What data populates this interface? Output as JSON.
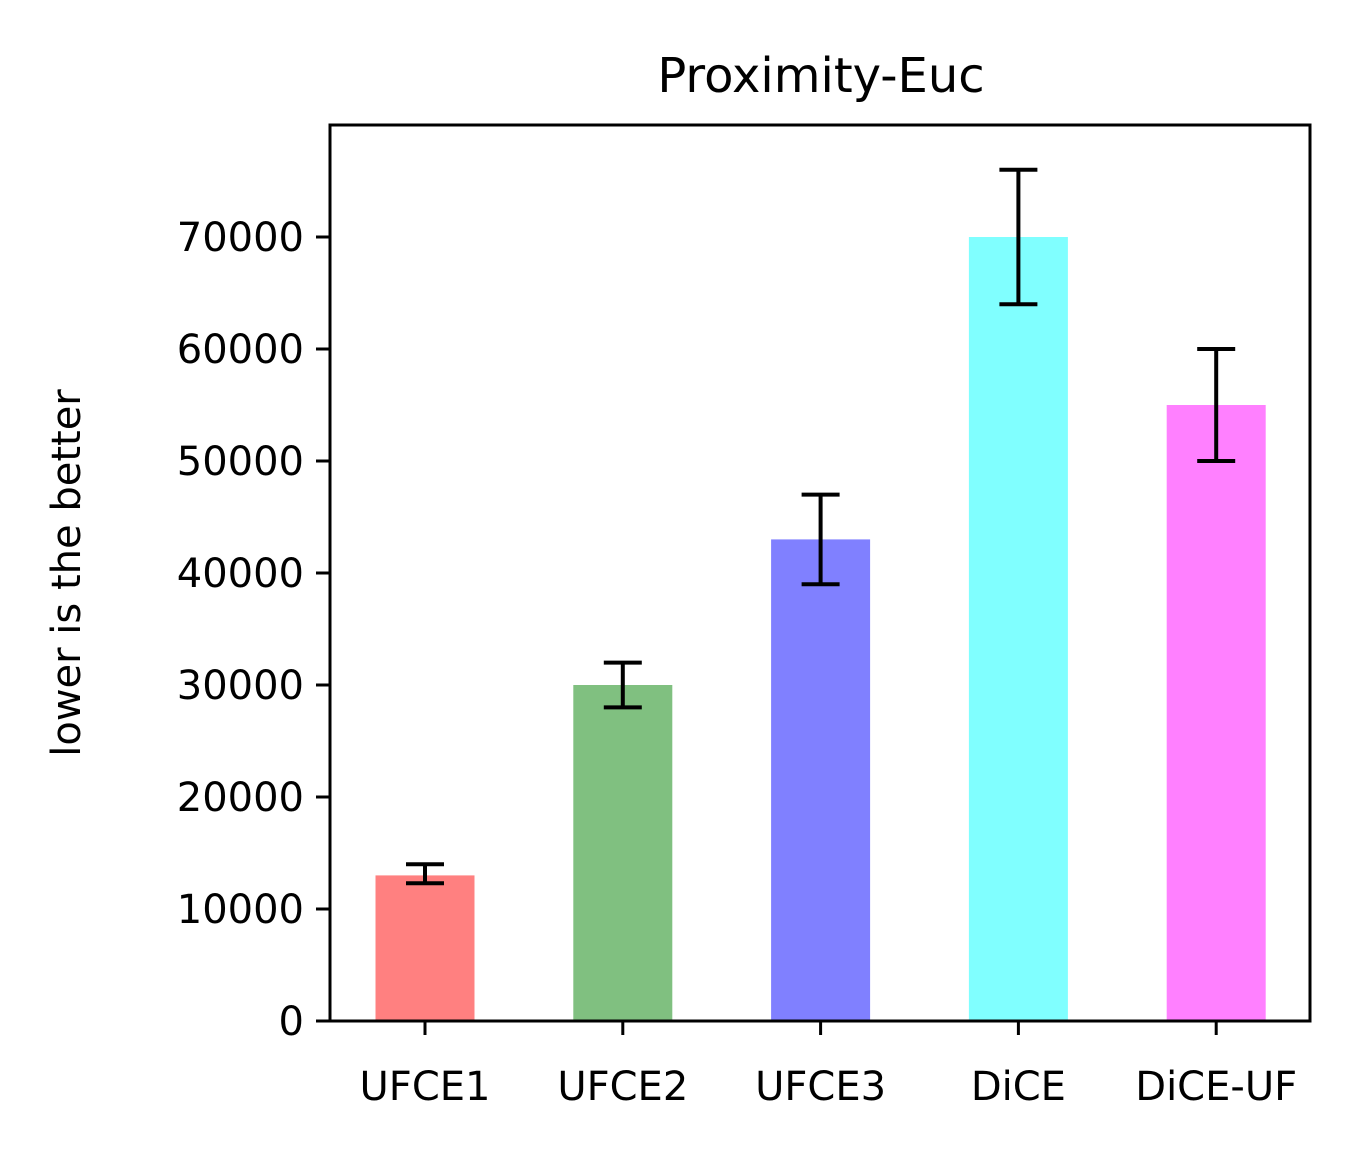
{
  "chart_data": {
    "type": "bar",
    "title": "Proximity-Euc",
    "xlabel": "",
    "ylabel": "lower is the better",
    "categories": [
      "UFCE1",
      "UFCE2",
      "UFCE3",
      "DiCE",
      "DiCE-UF"
    ],
    "values": [
      13000,
      30000,
      43000,
      70000,
      55000
    ],
    "error_low": [
      12300,
      28000,
      39000,
      64000,
      50000
    ],
    "error_high": [
      14000,
      32000,
      47000,
      76000,
      60000
    ],
    "colors": [
      "#ff8080",
      "#80c080",
      "#8080ff",
      "#80ffff",
      "#ff80ff"
    ],
    "yticks": [
      0,
      10000,
      20000,
      30000,
      40000,
      50000,
      60000,
      70000
    ],
    "ylim": [
      0,
      80000
    ],
    "grid": false,
    "legend": "none"
  }
}
